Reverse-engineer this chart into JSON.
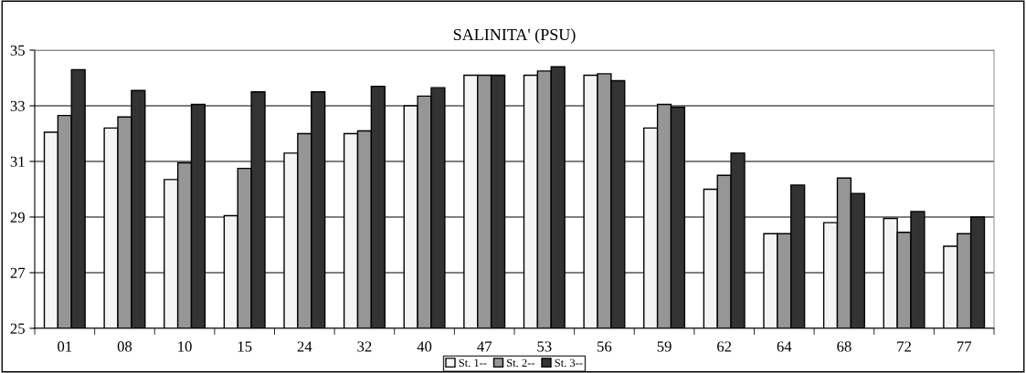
{
  "chart_data": {
    "type": "bar",
    "title": "SALINITA' (PSU)",
    "categories": [
      "01",
      "08",
      "10",
      "15",
      "24",
      "32",
      "40",
      "47",
      "53",
      "56",
      "59",
      "62",
      "64",
      "68",
      "72",
      "77"
    ],
    "series": [
      {
        "name": "St. 1--",
        "color": "#f4f4f4",
        "values": [
          32.05,
          32.2,
          30.35,
          29.05,
          31.3,
          32.0,
          33.0,
          34.1,
          34.1,
          34.1,
          32.2,
          30.0,
          28.4,
          28.8,
          28.95,
          27.95
        ]
      },
      {
        "name": "St. 2--",
        "color": "#969696",
        "values": [
          32.65,
          32.6,
          30.95,
          30.75,
          32.0,
          32.1,
          33.35,
          34.1,
          34.25,
          34.15,
          33.05,
          30.5,
          28.4,
          30.4,
          28.45,
          28.4
        ]
      },
      {
        "name": "St. 3--",
        "color": "#333333",
        "values": [
          34.3,
          33.55,
          33.05,
          33.5,
          33.5,
          33.7,
          33.65,
          34.1,
          34.4,
          33.9,
          32.95,
          31.3,
          30.15,
          29.85,
          29.2,
          29.0
        ]
      }
    ],
    "ylim": [
      25,
      35
    ],
    "yticks": [
      25,
      27,
      29,
      31,
      33,
      35
    ],
    "grid": "y",
    "legend": "bottom"
  }
}
